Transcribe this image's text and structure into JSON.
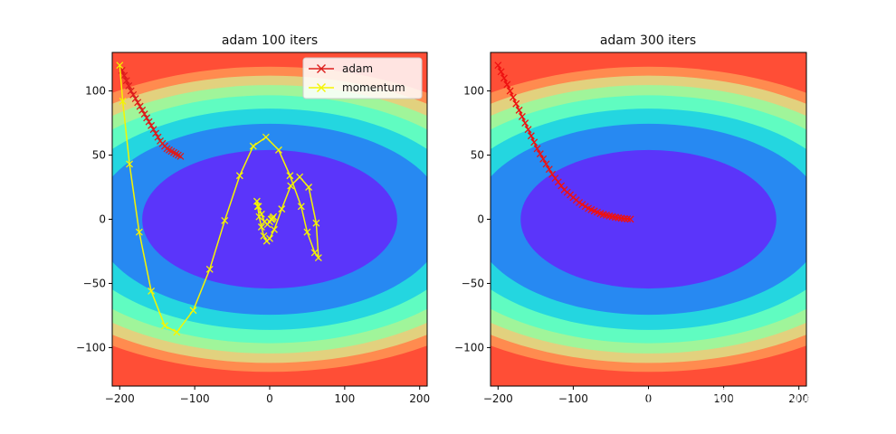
{
  "chart_data": [
    {
      "type": "line",
      "title": "adam 100 iters",
      "xlim": [
        -210,
        210
      ],
      "ylim": [
        -130,
        130
      ],
      "x_ticks": [
        -200,
        -100,
        0,
        100,
        200
      ],
      "y_ticks": [
        -100,
        -50,
        0,
        50,
        100
      ],
      "x_tick_labels": [
        "−200",
        "−100",
        "0",
        "100",
        "200"
      ],
      "y_tick_labels": [
        "−100",
        "−50",
        "0",
        "50",
        "100"
      ],
      "legend": {
        "placement": "top-right",
        "entries": [
          "adam",
          "momentum"
        ]
      },
      "contour": {
        "function": "x^2/a^2 + y^2/b^2",
        "levels": [
          1,
          1.9,
          2.55,
          3.2,
          3.75,
          4.3,
          4.85
        ],
        "a": 170,
        "b": 54,
        "colors": [
          "#5b35fa",
          "#2789f2",
          "#24d6e0",
          "#60fcc1",
          "#a0f59a",
          "#e2d17e",
          "#ff8b4f",
          "#ff4e36"
        ]
      },
      "series": [
        {
          "name": "adam",
          "color": "#dd1c1c",
          "marker": "x",
          "x": [
            -200,
            -197,
            -194,
            -191,
            -188,
            -185,
            -182,
            -179,
            -176,
            -173,
            -170,
            -167,
            -164,
            -161,
            -158,
            -155,
            -152,
            -149,
            -146,
            -143,
            -140,
            -137,
            -134,
            -131,
            -128,
            -125,
            -122,
            -119
          ],
          "y": [
            120,
            116,
            112,
            108,
            104,
            100,
            97,
            94,
            91,
            88,
            85,
            82,
            79,
            76,
            73,
            70,
            67,
            64,
            61,
            59,
            57,
            55,
            54,
            53,
            52,
            51,
            50,
            49
          ]
        },
        {
          "name": "momentum",
          "color": "#f5f500",
          "marker": "x",
          "x": [
            -200,
            -196,
            -187,
            -174,
            -158,
            -140,
            -124,
            -102,
            -80,
            -60,
            -40,
            -22,
            -5,
            12,
            27,
            42,
            50,
            60,
            65,
            62,
            52,
            40,
            28,
            16,
            6,
            0,
            -4,
            -8,
            -11,
            -14,
            -16,
            -17,
            -15,
            -11,
            -7,
            -3,
            0,
            3,
            5,
            4,
            2
          ],
          "y": [
            120,
            92,
            43,
            -10,
            -56,
            -83,
            -88,
            -71,
            -39,
            -1,
            34,
            57,
            64,
            54,
            34,
            10,
            -10,
            -26,
            -30,
            -3,
            25,
            33,
            26,
            8,
            -8,
            -15,
            -17,
            -13,
            -6,
            2,
            10,
            14,
            10,
            4,
            -2,
            -4,
            -2,
            0,
            2,
            1,
            0
          ]
        }
      ]
    },
    {
      "type": "line",
      "title": "adam 300 iters",
      "xlim": [
        -210,
        210
      ],
      "ylim": [
        -130,
        130
      ],
      "x_ticks": [
        -200,
        -100,
        0,
        100,
        200
      ],
      "y_ticks": [
        -100,
        -50,
        0,
        50,
        100
      ],
      "x_tick_labels": [
        "−200",
        "−100",
        "0",
        "100",
        "200"
      ],
      "y_tick_labels": [
        "−100",
        "−50",
        "0",
        "50",
        "100"
      ],
      "contour": {
        "function": "x^2/a^2 + y^2/b^2",
        "levels": [
          1,
          1.9,
          2.55,
          3.2,
          3.75,
          4.3,
          4.85
        ],
        "a": 170,
        "b": 54,
        "colors": [
          "#5b35fa",
          "#2789f2",
          "#24d6e0",
          "#60fcc1",
          "#a0f59a",
          "#e2d17e",
          "#ff8b4f",
          "#ff4e36"
        ]
      },
      "series": [
        {
          "name": "adam",
          "color": "#ee1111",
          "marker": "x",
          "x": [
            -200,
            -196,
            -192,
            -188,
            -184,
            -180,
            -176,
            -172,
            -168,
            -164,
            -160,
            -156,
            -152,
            -148,
            -144,
            -140,
            -136,
            -132,
            -128,
            -124,
            -120,
            -116,
            -112,
            -108,
            -104,
            -100,
            -96,
            -92,
            -88,
            -84,
            -80,
            -76,
            -72,
            -68,
            -64,
            -60,
            -56,
            -52,
            -48,
            -44,
            -40,
            -36,
            -32,
            -28,
            -24
          ],
          "y": [
            120,
            115,
            110,
            105,
            100,
            95,
            90,
            85,
            80,
            75,
            70,
            65,
            60,
            55,
            51,
            47,
            43,
            39,
            35,
            32,
            29,
            26,
            23,
            21,
            19,
            17,
            15,
            13,
            11.5,
            10,
            8.5,
            7.5,
            6.5,
            5.5,
            4.5,
            3.8,
            3.2,
            2.6,
            2.1,
            1.6,
            1.2,
            0.8,
            0.5,
            0.3,
            0.1
          ]
        }
      ]
    }
  ],
  "watermark": "知乎 @闪电侠的右手"
}
